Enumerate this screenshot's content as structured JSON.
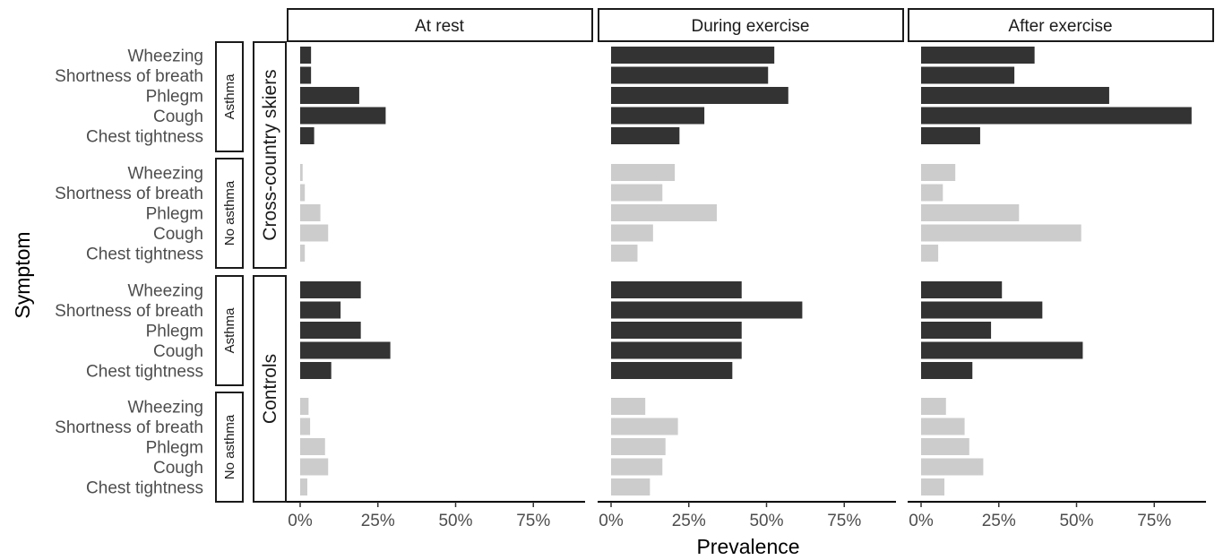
{
  "chart_data": {
    "type": "bar",
    "orientation": "horizontal",
    "xlabel": "Prevalence",
    "ylabel": "Symptom",
    "xlim": [
      0,
      0.9
    ],
    "x_ticks": [
      0,
      0.25,
      0.5,
      0.75
    ],
    "x_tick_labels": [
      "0%",
      "25%",
      "50%",
      "75%"
    ],
    "columns": [
      "At rest",
      "During exercise",
      "After exercise"
    ],
    "categories": [
      "Wheezing",
      "Shortness of breath",
      "Phlegm",
      "Cough",
      "Chest tightness"
    ],
    "colors": {
      "Asthma": "#333333",
      "No asthma": "#cccccc"
    },
    "groups": [
      {
        "name": "Cross-country skiers",
        "subgroups": [
          {
            "name": "Asthma",
            "series": [
              {
                "column": "At rest",
                "values": [
                  0.035,
                  0.035,
                  0.19,
                  0.275,
                  0.045
                ]
              },
              {
                "column": "During exercise",
                "values": [
                  0.525,
                  0.505,
                  0.57,
                  0.3,
                  0.22
                ]
              },
              {
                "column": "After exercise",
                "values": [
                  0.365,
                  0.3,
                  0.605,
                  0.87,
                  0.19
                ]
              }
            ]
          },
          {
            "name": "No asthma",
            "series": [
              {
                "column": "At rest",
                "values": [
                  0.008,
                  0.015,
                  0.065,
                  0.09,
                  0.015
                ]
              },
              {
                "column": "During exercise",
                "values": [
                  0.205,
                  0.165,
                  0.34,
                  0.135,
                  0.085
                ]
              },
              {
                "column": "After exercise",
                "values": [
                  0.11,
                  0.07,
                  0.315,
                  0.515,
                  0.055
                ]
              }
            ]
          }
        ]
      },
      {
        "name": "Controls",
        "subgroups": [
          {
            "name": "Asthma",
            "series": [
              {
                "column": "At rest",
                "values": [
                  0.195,
                  0.13,
                  0.195,
                  0.29,
                  0.1
                ]
              },
              {
                "column": "During exercise",
                "values": [
                  0.42,
                  0.615,
                  0.42,
                  0.42,
                  0.39
                ]
              },
              {
                "column": "After exercise",
                "values": [
                  0.26,
                  0.39,
                  0.225,
                  0.52,
                  0.165
                ]
              }
            ]
          },
          {
            "name": "No asthma",
            "series": [
              {
                "column": "At rest",
                "values": [
                  0.027,
                  0.032,
                  0.08,
                  0.09,
                  0.023
                ]
              },
              {
                "column": "During exercise",
                "values": [
                  0.11,
                  0.215,
                  0.175,
                  0.165,
                  0.125
                ]
              },
              {
                "column": "After exercise",
                "values": [
                  0.08,
                  0.14,
                  0.155,
                  0.2,
                  0.075
                ]
              }
            ]
          }
        ]
      }
    ],
    "grid": false,
    "legend": "none"
  }
}
